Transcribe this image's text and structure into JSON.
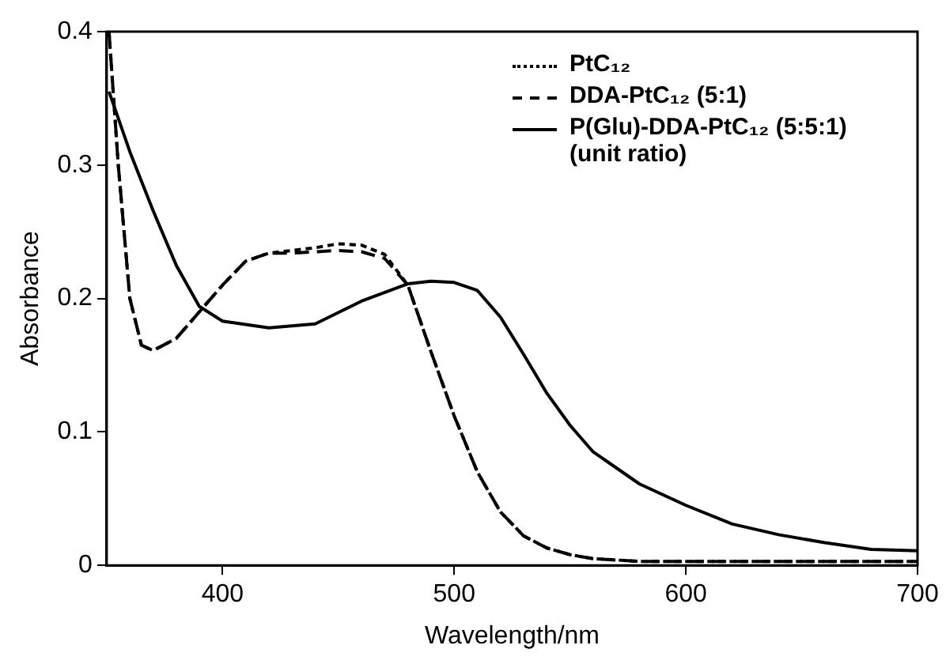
{
  "chart_data": {
    "type": "line",
    "xlabel": "Wavelength/nm",
    "ylabel": "Absorbance",
    "xlim": [
      350,
      700
    ],
    "xticks": [
      400,
      500,
      600,
      700
    ],
    "ylim": [
      0,
      0.4
    ],
    "yticks": [
      0,
      0.1,
      0.2,
      0.3,
      0.4
    ],
    "grid": false,
    "legend": "top right",
    "marker": "none",
    "series": [
      {
        "name": "PtC₁₂",
        "color": "#000000",
        "line_style": "dotted",
        "x": [
          351,
          355,
          360,
          365,
          370,
          380,
          390,
          400,
          410,
          420,
          430,
          440,
          450,
          460,
          470,
          480,
          490,
          500,
          510,
          520,
          530,
          540,
          550,
          560,
          580,
          600,
          700
        ],
        "values": [
          0.4,
          0.3,
          0.2,
          0.165,
          0.161,
          0.17,
          0.19,
          0.21,
          0.228,
          0.234,
          0.236,
          0.238,
          0.241,
          0.24,
          0.233,
          0.21,
          0.16,
          0.112,
          0.07,
          0.04,
          0.022,
          0.013,
          0.008,
          0.005,
          0.003,
          0.003,
          0.003
        ]
      },
      {
        "name": "DDA-PtC₁₂ (5:1)",
        "color": "#000000",
        "line_style": "dashed",
        "x": [
          351,
          355,
          360,
          365,
          370,
          380,
          390,
          400,
          410,
          420,
          430,
          440,
          450,
          460,
          470,
          480,
          490,
          500,
          510,
          520,
          530,
          540,
          550,
          560,
          580,
          600,
          700
        ],
        "values": [
          0.4,
          0.3,
          0.2,
          0.165,
          0.161,
          0.17,
          0.19,
          0.21,
          0.228,
          0.234,
          0.234,
          0.235,
          0.236,
          0.235,
          0.23,
          0.21,
          0.16,
          0.112,
          0.07,
          0.04,
          0.022,
          0.013,
          0.008,
          0.005,
          0.003,
          0.003,
          0.003
        ]
      },
      {
        "name": "P(Glu)-DDA-PtC₁₂ (5:5:1) (unit ratio)",
        "color": "#000000",
        "line_style": "solid",
        "x": [
          351,
          360,
          370,
          380,
          390,
          400,
          420,
          440,
          460,
          480,
          490,
          500,
          510,
          520,
          530,
          540,
          550,
          560,
          580,
          600,
          620,
          640,
          660,
          680,
          700
        ],
        "values": [
          0.355,
          0.31,
          0.266,
          0.225,
          0.194,
          0.183,
          0.178,
          0.181,
          0.198,
          0.211,
          0.213,
          0.212,
          0.206,
          0.186,
          0.158,
          0.129,
          0.105,
          0.085,
          0.061,
          0.045,
          0.031,
          0.023,
          0.017,
          0.012,
          0.011
        ]
      }
    ]
  }
}
